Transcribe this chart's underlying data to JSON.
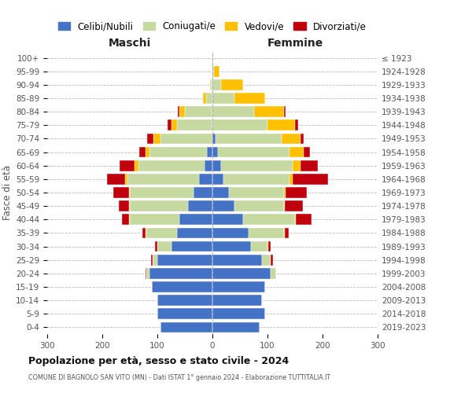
{
  "age_groups": [
    "100+",
    "95-99",
    "90-94",
    "85-89",
    "80-84",
    "75-79",
    "70-74",
    "65-69",
    "60-64",
    "55-59",
    "50-54",
    "45-49",
    "40-44",
    "35-39",
    "30-34",
    "25-29",
    "20-24",
    "15-19",
    "10-14",
    "5-9",
    "0-4"
  ],
  "birth_years": [
    "≤ 1923",
    "1924-1928",
    "1929-1933",
    "1934-1938",
    "1939-1943",
    "1944-1948",
    "1949-1953",
    "1954-1958",
    "1959-1963",
    "1964-1968",
    "1969-1973",
    "1974-1978",
    "1979-1983",
    "1984-1988",
    "1989-1993",
    "1994-1998",
    "1999-2003",
    "2004-2008",
    "2009-2013",
    "2014-2018",
    "2019-2023"
  ],
  "males": {
    "celibi": [
      0,
      0,
      0,
      0,
      0,
      0,
      0,
      10,
      15,
      25,
      35,
      45,
      60,
      65,
      75,
      100,
      115,
      110,
      100,
      100,
      95
    ],
    "coniugati": [
      0,
      0,
      3,
      12,
      50,
      65,
      95,
      105,
      120,
      130,
      115,
      105,
      90,
      55,
      25,
      8,
      5,
      0,
      0,
      0,
      0
    ],
    "vedovi": [
      0,
      0,
      2,
      5,
      10,
      10,
      12,
      6,
      6,
      4,
      2,
      2,
      2,
      1,
      0,
      0,
      0,
      0,
      0,
      0,
      0
    ],
    "divorziati": [
      0,
      0,
      0,
      0,
      3,
      6,
      12,
      12,
      28,
      32,
      28,
      18,
      12,
      6,
      5,
      4,
      1,
      0,
      0,
      0,
      0
    ]
  },
  "females": {
    "nubili": [
      0,
      0,
      0,
      0,
      0,
      0,
      5,
      10,
      15,
      20,
      30,
      40,
      55,
      65,
      70,
      90,
      105,
      95,
      90,
      95,
      85
    ],
    "coniugate": [
      0,
      3,
      15,
      40,
      75,
      100,
      120,
      130,
      130,
      120,
      100,
      90,
      95,
      65,
      30,
      15,
      10,
      0,
      0,
      0,
      0
    ],
    "vedove": [
      2,
      10,
      40,
      55,
      55,
      50,
      35,
      25,
      15,
      5,
      3,
      2,
      2,
      2,
      1,
      1,
      0,
      0,
      0,
      0,
      0
    ],
    "divorziate": [
      0,
      0,
      0,
      0,
      3,
      6,
      6,
      12,
      32,
      65,
      38,
      32,
      28,
      6,
      5,
      4,
      1,
      0,
      0,
      0,
      0
    ]
  },
  "colors": {
    "celibi": "#4472c4",
    "coniugati": "#c5d9a0",
    "vedovi": "#ffc000",
    "divorziati": "#c0000c"
  },
  "xlim": 300,
  "title": "Popolazione per età, sesso e stato civile - 2024",
  "subtitle": "COMUNE DI BAGNOLO SAN VITO (MN) - Dati ISTAT 1° gennaio 2024 - Elaborazione TUTTITALIA.IT",
  "xlabel_left": "Maschi",
  "xlabel_right": "Femmine",
  "ylabel_left": "Fasce di età",
  "legend_labels": [
    "Celibi/Nubili",
    "Coniugati/e",
    "Vedovi/e",
    "Divorziati/e"
  ],
  "bg_color": "#ffffff",
  "grid_color": "#bbbbbb"
}
